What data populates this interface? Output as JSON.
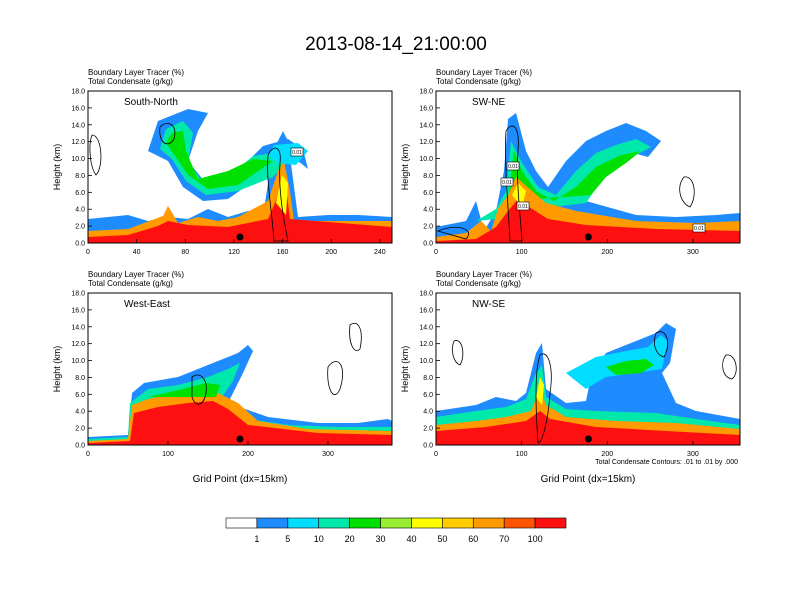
{
  "title": "2013-08-14_21:00:00",
  "panel_left_label": "Boundary Layer Tracer    (%)",
  "panel_right_label": "Total Condensate    (g/kg)",
  "footnote": "Total Condensate Contours: .01 to .01 by .000",
  "colors": {
    "blue": "#1e8cff",
    "cyan": "#00ddff",
    "teal": "#00e8aa",
    "green": "#00e000",
    "lime": "#99ee33",
    "yellow": "#ffff00",
    "gold": "#ffcc00",
    "orange": "#ff9a00",
    "redorange": "#ff5500",
    "red": "#ff1010",
    "contour": "#000000"
  },
  "colorbar": {
    "labels": [
      "1",
      "5",
      "10",
      "20",
      "30",
      "40",
      "50",
      "60",
      "70",
      "100"
    ],
    "fills": [
      "#ffffff",
      "#1e8cff",
      "#00ddff",
      "#00e8aa",
      "#00e000",
      "#99ee33",
      "#ffff00",
      "#ffcc00",
      "#ff9a00",
      "#ff5500",
      "#ff1010"
    ]
  },
  "chart_data": [
    {
      "type": "heatmap",
      "title": "South-North",
      "xlabel": "",
      "ylabel": "Height (km)",
      "xlim": [
        0,
        250
      ],
      "ylim": [
        0,
        18
      ],
      "xticks": [
        "0",
        "40",
        "80",
        "120",
        "160",
        "200",
        "240"
      ],
      "yticks": [
        "0.0",
        "2.0",
        "4.0",
        "6.0",
        "8.0",
        "10.0",
        "12.0",
        "14.0",
        "16.0",
        "18.0"
      ],
      "annotations": [
        "0.01"
      ],
      "marker_x": 125
    },
    {
      "type": "heatmap",
      "title": "SW-NE",
      "xlabel": "",
      "ylabel": "Height (km)",
      "xlim": [
        0,
        355
      ],
      "ylim": [
        0,
        18
      ],
      "xticks": [
        "0",
        "100",
        "200",
        "300"
      ],
      "yticks": [
        "0.0",
        "2.0",
        "4.0",
        "6.0",
        "8.0",
        "10.0",
        "12.0",
        "14.0",
        "16.0",
        "18.0"
      ],
      "annotations": [
        "0.01",
        "0.01",
        "0.01",
        "0.01"
      ],
      "marker_x": 178
    },
    {
      "type": "heatmap",
      "title": "West-East",
      "xlabel": "Grid Point (dx=15km)",
      "ylabel": "Height (km)",
      "xlim": [
        0,
        380
      ],
      "ylim": [
        0,
        18
      ],
      "xticks": [
        "0",
        "100",
        "200",
        "300"
      ],
      "yticks": [
        "0.0",
        "2.0",
        "4.0",
        "6.0",
        "8.0",
        "10.0",
        "12.0",
        "14.0",
        "16.0",
        "18.0"
      ],
      "annotations": [],
      "marker_x": 190
    },
    {
      "type": "heatmap",
      "title": "NW-SE",
      "xlabel": "Grid Point (dx=15km)",
      "ylabel": "Height (km)",
      "xlim": [
        0,
        355
      ],
      "ylim": [
        0,
        18
      ],
      "xticks": [
        "0",
        "100",
        "200",
        "300"
      ],
      "yticks": [
        "0.0",
        "2.0",
        "4.0",
        "6.0",
        "8.0",
        "10.0",
        "12.0",
        "14.0",
        "16.0",
        "18.0"
      ],
      "annotations": [],
      "marker_x": 178
    }
  ]
}
